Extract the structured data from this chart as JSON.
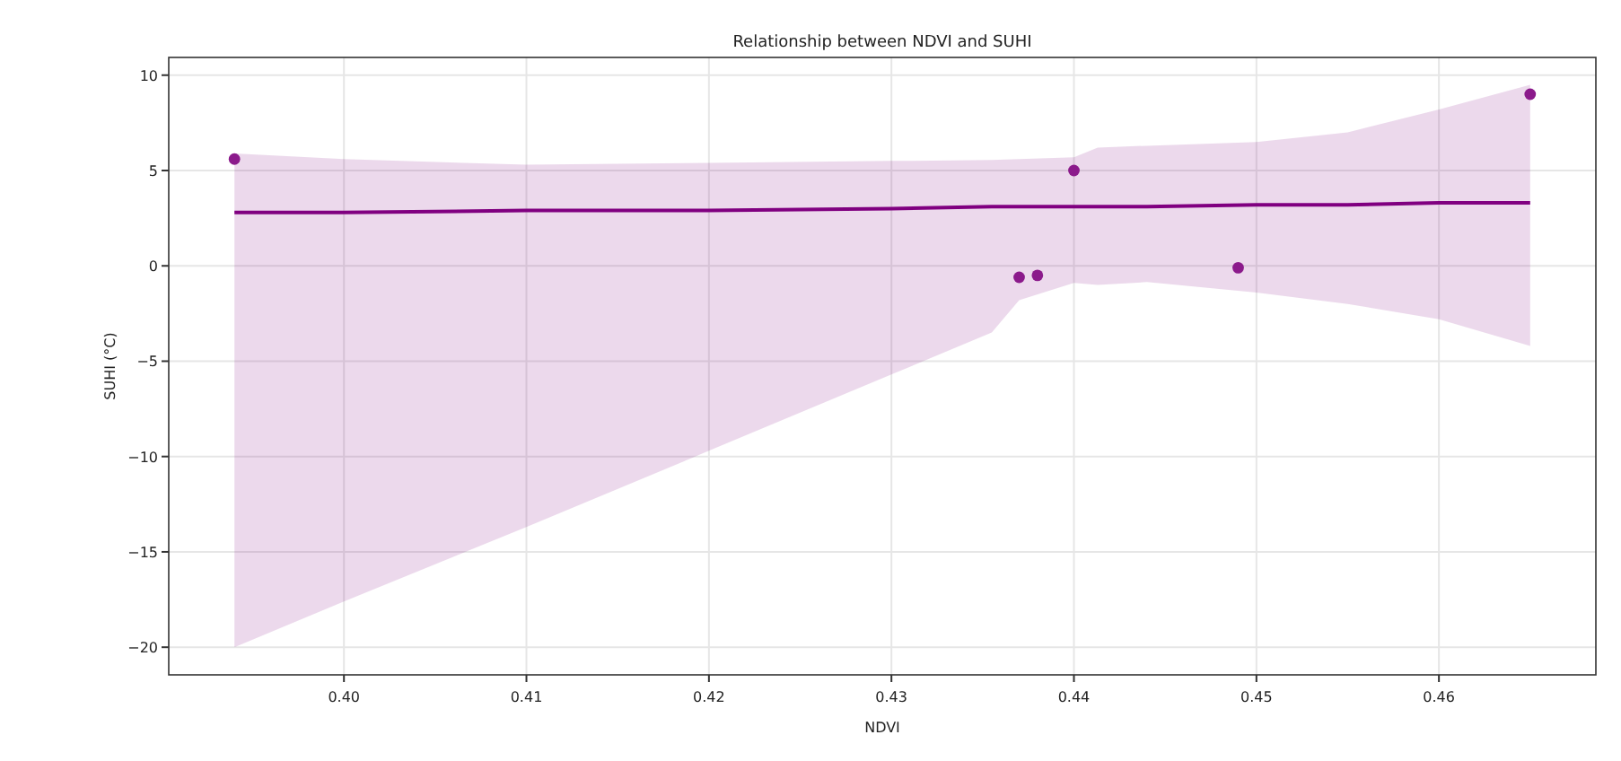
{
  "chart_data": {
    "type": "scatter",
    "title": "Relationship between NDVI and SUHI",
    "xlabel": "NDVI",
    "ylabel": "SUHI (°C)",
    "xlim": [
      0.3904,
      0.4686
    ],
    "ylim": [
      -21.45,
      10.93
    ],
    "xticks": [
      {
        "value": 0.4,
        "label": "0.40"
      },
      {
        "value": 0.41,
        "label": "0.41"
      },
      {
        "value": 0.42,
        "label": "0.42"
      },
      {
        "value": 0.43,
        "label": "0.43"
      },
      {
        "value": 0.44,
        "label": "0.44"
      },
      {
        "value": 0.45,
        "label": "0.45"
      },
      {
        "value": 0.46,
        "label": "0.46"
      }
    ],
    "yticks": [
      {
        "value": -20,
        "label": "−20"
      },
      {
        "value": -15,
        "label": "−15"
      },
      {
        "value": -10,
        "label": "−10"
      },
      {
        "value": -5,
        "label": "−5"
      },
      0,
      5,
      10
    ],
    "grid": true,
    "series": [
      {
        "type": "line",
        "color": "#800080",
        "marker": "none",
        "x": [
          0.394,
          0.4,
          0.41,
          0.42,
          0.43,
          0.4355,
          0.437,
          0.44,
          0.4413,
          0.444,
          0.45,
          0.455,
          0.46,
          0.465
        ],
        "values": [
          2.8,
          2.8,
          2.9,
          2.9,
          3.0,
          3.1,
          3.1,
          3.1,
          3.1,
          3.1,
          3.2,
          3.2,
          3.3,
          3.3
        ],
        "lower": [
          -20,
          -17.6,
          -13.7,
          -9.7,
          -5.7,
          -3.5,
          -1.8,
          -0.9,
          -1.0,
          -0.85,
          -1.4,
          -2.0,
          -2.8,
          -4.2
        ],
        "upper": [
          5.9,
          5.6,
          5.3,
          5.4,
          5.5,
          5.55,
          5.6,
          5.7,
          6.2,
          6.3,
          6.5,
          7.0,
          8.2,
          9.5
        ]
      },
      {
        "color": "#8b1a8b",
        "marker": "circle",
        "x": [
          0.394,
          0.437,
          0.438,
          0.44,
          0.449,
          0.465
        ],
        "values": [
          5.6,
          -0.6,
          -0.5,
          5.0,
          -0.1,
          9.0
        ]
      }
    ]
  }
}
